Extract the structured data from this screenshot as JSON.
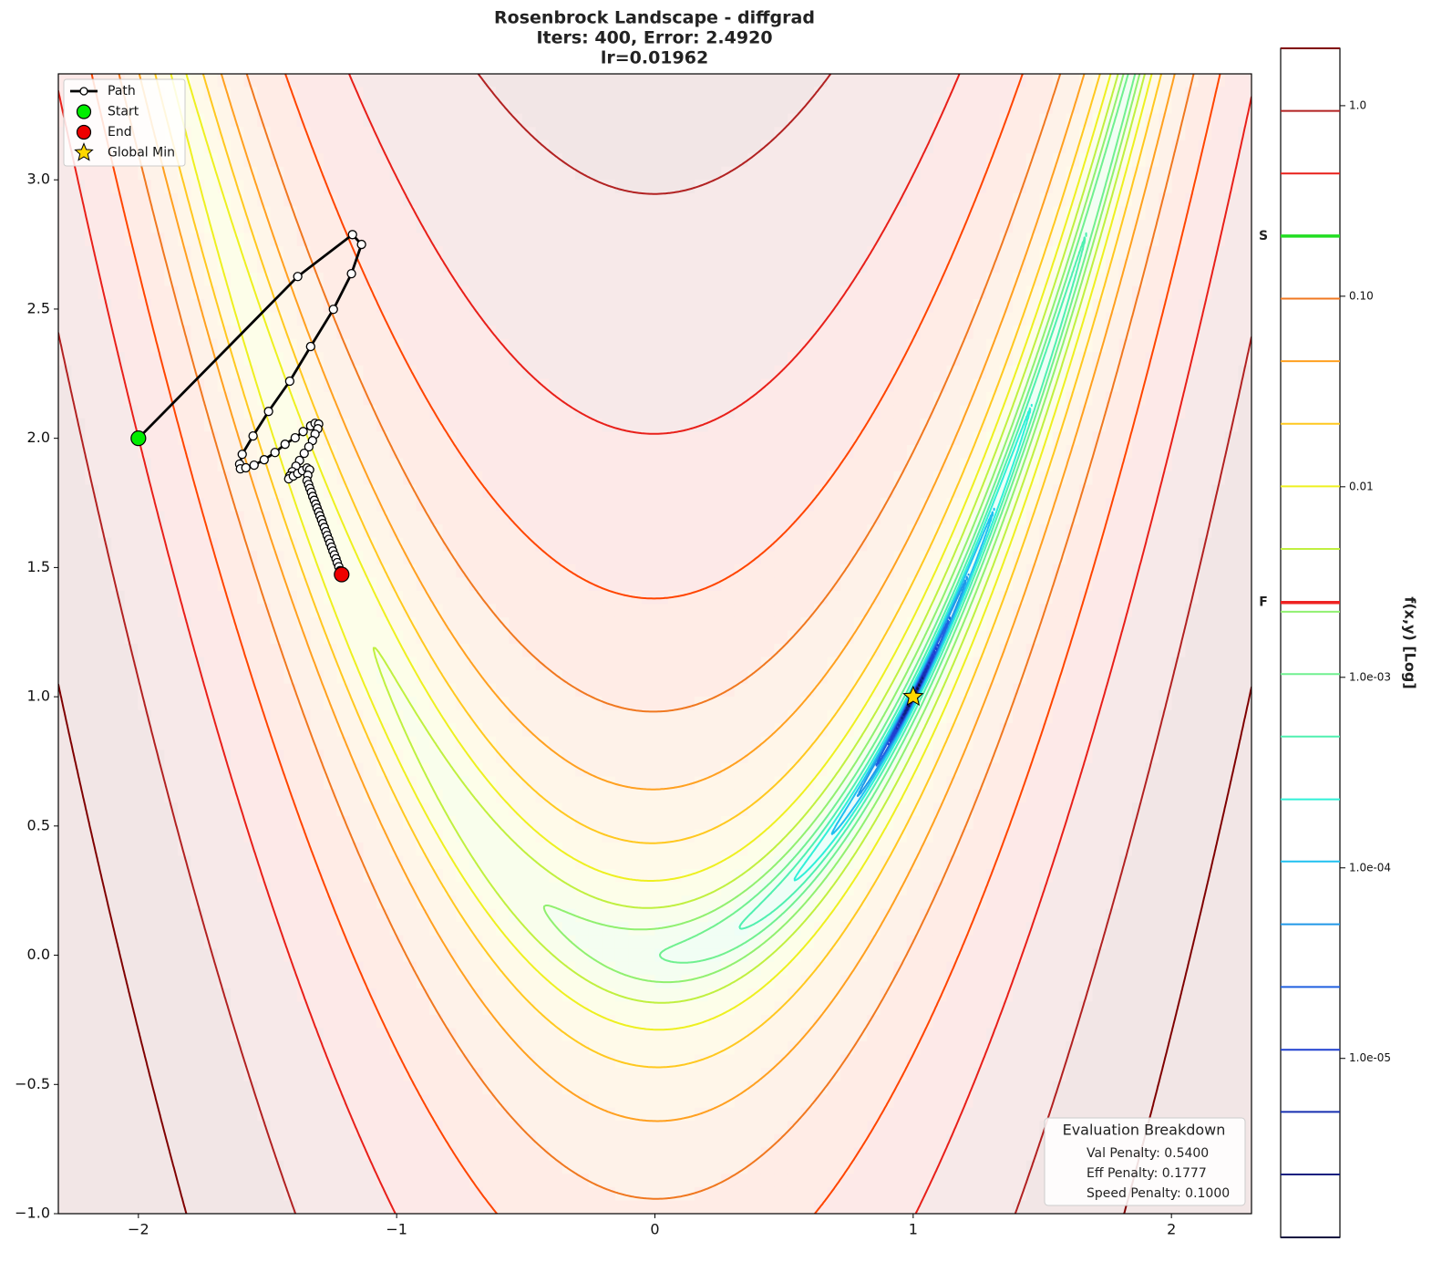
{
  "chart_data": {
    "type": "contour",
    "title": [
      "Rosenbrock Landscape - diffgrad",
      "Iters: 400, Error: 2.4920",
      "lr=0.01962"
    ],
    "xlim": [
      -2.31,
      2.31
    ],
    "ylim": [
      -1,
      3.41
    ],
    "xticks": [
      {
        "value": -2,
        "label": "−2"
      },
      {
        "value": -1,
        "label": "−1"
      },
      0,
      1,
      2
    ],
    "yticks": [
      {
        "value": -1,
        "label": "−1.0"
      },
      {
        "value": -0.5,
        "label": "−0.5"
      },
      {
        "value": 0,
        "label": "0.0"
      },
      0.5,
      {
        "value": 1,
        "label": "1.0"
      },
      1.5,
      {
        "value": 2,
        "label": "2.0"
      },
      2.5,
      {
        "value": 3,
        "label": "3.0"
      }
    ],
    "series": [
      {
        "name": "Path",
        "color": "#000000",
        "x": [
          -2,
          -1.383,
          -1.171,
          -1.136,
          -1.175,
          -1.245,
          -1.333,
          -1.414,
          -1.496,
          -1.556,
          -1.598,
          -1.608,
          -1.605,
          -1.584,
          -1.552,
          -1.513,
          -1.471,
          -1.432,
          -1.393,
          -1.362,
          -1.333,
          -1.316,
          -1.302,
          -1.305,
          -1.316,
          -1.326,
          -1.34,
          -1.358,
          -1.376,
          -1.39,
          -1.404,
          -1.414,
          -1.418,
          -1.4,
          -1.383,
          -1.365,
          -1.347,
          -1.337,
          -1.344,
          -1.347,
          -1.341,
          -1.336,
          -1.33,
          -1.325,
          -1.319,
          -1.313,
          -1.308,
          -1.302,
          -1.297,
          -1.291,
          -1.286,
          -1.28,
          -1.274,
          -1.269,
          -1.263,
          -1.258,
          -1.252,
          -1.247,
          -1.241,
          -1.235,
          -1.23,
          -1.224,
          -1.219,
          -1.213
        ],
        "y": [
          2,
          2.626,
          2.788,
          2.75,
          2.637,
          2.499,
          2.355,
          2.221,
          2.104,
          2.009,
          1.938,
          1.9,
          1.882,
          1.886,
          1.896,
          1.917,
          1.945,
          1.977,
          2.002,
          2.026,
          2.048,
          2.058,
          2.055,
          2.037,
          2.016,
          1.991,
          1.967,
          1.942,
          1.914,
          1.892,
          1.871,
          1.854,
          1.843,
          1.854,
          1.864,
          1.875,
          1.885,
          1.878,
          1.857,
          1.836,
          1.821,
          1.806,
          1.791,
          1.775,
          1.76,
          1.745,
          1.73,
          1.715,
          1.7,
          1.685,
          1.67,
          1.655,
          1.639,
          1.624,
          1.609,
          1.594,
          1.579,
          1.564,
          1.549,
          1.534,
          1.519,
          1.503,
          1.488,
          1.473
        ]
      },
      {
        "name": "Start",
        "color": "#00ee00",
        "x": [
          -2
        ],
        "y": [
          2
        ]
      },
      {
        "name": "End",
        "color": "#ee0000",
        "x": [
          -1.213
        ],
        "y": [
          1.473
        ]
      },
      {
        "name": "Global Min",
        "color": "#ffd700",
        "x": [
          1
        ],
        "y": [
          1
        ]
      }
    ],
    "legend": "upper left",
    "colorbar": {
      "label": "f(x,y) [Log]",
      "log": true,
      "ylim": [
        1.15e-06,
        2.0
      ],
      "yticks": [
        {
          "value": 1,
          "label": "1.0"
        },
        {
          "value": 0.1,
          "label": "0.10"
        },
        0.01,
        {
          "value": 0.001,
          "label": "1.0e-03"
        },
        {
          "value": 0.0001,
          "label": "1.0e-04"
        },
        {
          "value": 1e-05,
          "label": "1.0e-05"
        }
      ],
      "levels": [
        2.0,
        0.939,
        0.441,
        0.207,
        0.0971,
        0.0456,
        0.0214,
        0.01005,
        0.00472,
        0.00221,
        0.00104,
        0.000489,
        0.000229,
        0.000108,
        5.06e-05,
        2.37e-05,
        1.11e-05,
        5.24e-06,
        2.46e-06,
        1.15e-06
      ],
      "level_colors": [
        "#800000",
        "#b22222",
        "#e8201a",
        "#ff4500",
        "#f07820",
        "#ffa020",
        "#ffc820",
        "#eef020",
        "#c0f040",
        "#90f070",
        "#70f090",
        "#50f0b0",
        "#30f0d8",
        "#20c0f0",
        "#2098e8",
        "#2060e0",
        "#2040d0",
        "#1830b0",
        "#102080",
        "#101040"
      ],
      "markers": [
        {
          "label": "S",
          "value": 0.207,
          "color": "#22dd22"
        },
        {
          "label": "F",
          "value": 0.00247,
          "color": "#ee2222"
        }
      ]
    },
    "annotation": {
      "title": "Evaluation Breakdown",
      "lines": [
        "Val Penalty: 0.5400",
        "Eff Penalty: 0.1777",
        "Speed Penalty: 0.1000"
      ]
    }
  }
}
